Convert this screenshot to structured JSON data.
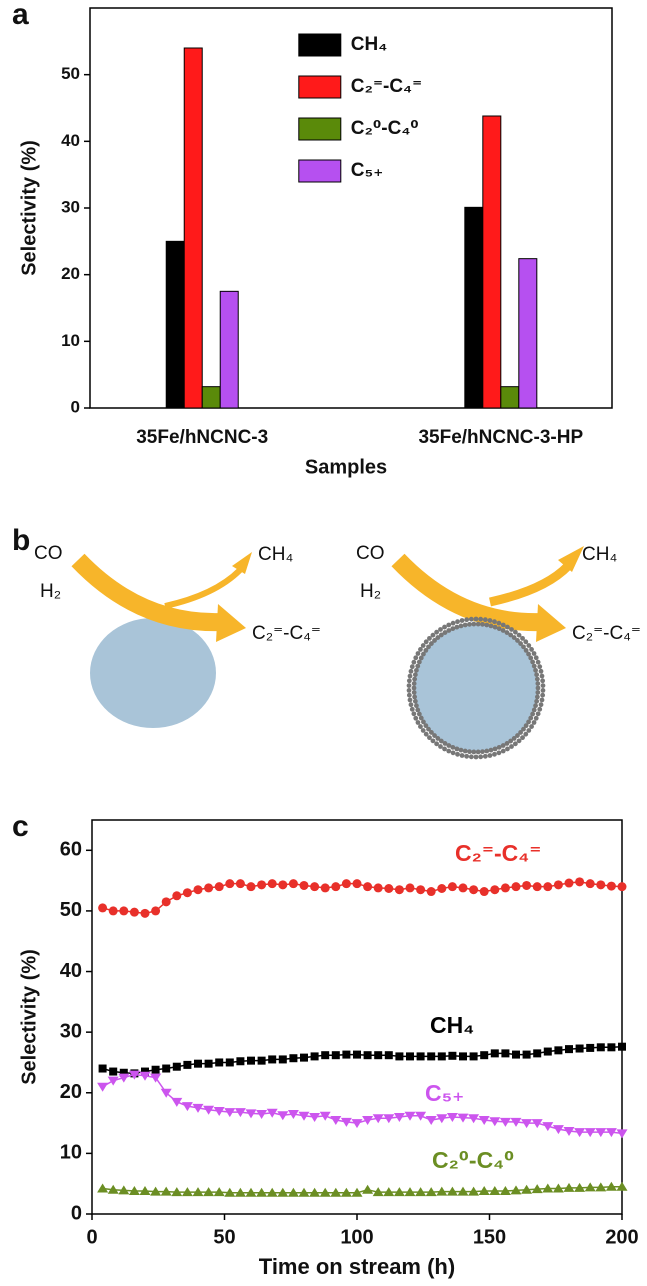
{
  "chart_data": [
    {
      "type": "bar",
      "label": "a",
      "ylabel": "Selectivity (%)",
      "xlabel": "Samples",
      "categories": [
        "35Fe/hNCNC-3",
        "35Fe/hNCNC-3-HP"
      ],
      "series": [
        {
          "name": "CH₄",
          "color": "#000000",
          "values": [
            25,
            30.1
          ]
        },
        {
          "name": "C₂⁼-C₄⁼",
          "color": "#ff1a1a",
          "values": [
            54,
            43.8
          ]
        },
        {
          "name": "C₂⁰-C₄⁰",
          "color": "#5a8a0a",
          "values": [
            3.2,
            3.2
          ]
        },
        {
          "name": "C₅₊",
          "color": "#b650f0",
          "values": [
            17.5,
            22.4
          ]
        }
      ],
      "ylim": [
        0,
        60
      ],
      "yticks": [
        0,
        10,
        20,
        30,
        40,
        50
      ],
      "legend": "upper-center"
    },
    {
      "type": "line",
      "label": "c",
      "ylabel": "Selectivity (%)",
      "xlabel": "Time on stream (h)",
      "x": [
        4,
        8,
        12,
        16,
        20,
        24,
        28,
        32,
        36,
        40,
        44,
        48,
        52,
        56,
        60,
        64,
        68,
        72,
        76,
        80,
        84,
        88,
        92,
        96,
        100,
        104,
        108,
        112,
        116,
        120,
        124,
        128,
        132,
        136,
        140,
        144,
        148,
        152,
        156,
        160,
        164,
        168,
        172,
        176,
        180,
        184,
        188,
        192,
        196,
        200
      ],
      "series": [
        {
          "name": "C₂⁼-C₄⁼",
          "color": "#e8302a",
          "marker": "circle",
          "values": [
            50.5,
            50,
            50,
            49.8,
            49.6,
            50,
            51.5,
            52.5,
            53,
            53.5,
            53.8,
            54,
            54.5,
            54.5,
            54,
            54.3,
            54.5,
            54.3,
            54.5,
            54.2,
            54,
            53.8,
            54,
            54.5,
            54.5,
            54,
            53.8,
            53.7,
            53.5,
            53.8,
            53.5,
            53.2,
            53.7,
            54,
            53.8,
            53.5,
            53.2,
            53.5,
            53.8,
            54,
            54.2,
            54,
            54,
            54.3,
            54.6,
            54.8,
            54.5,
            54.3,
            54.1,
            54
          ]
        },
        {
          "name": "CH₄",
          "color": "#000000",
          "marker": "square",
          "values": [
            24,
            23.5,
            23.3,
            23.2,
            23.5,
            23.8,
            24,
            24.3,
            24.6,
            24.8,
            24.8,
            25,
            25,
            25.2,
            25.3,
            25.3,
            25.5,
            25.5,
            25.7,
            25.8,
            26,
            26.2,
            26.2,
            26.3,
            26.3,
            26.2,
            26.2,
            26.2,
            26,
            26,
            26,
            26,
            26,
            26.1,
            26,
            26,
            26.2,
            26.5,
            26.5,
            26.3,
            26.3,
            26.5,
            26.8,
            27,
            27.2,
            27.3,
            27.4,
            27.5,
            27.5,
            27.6
          ]
        },
        {
          "name": "C₅₊",
          "color": "#cc55ee",
          "marker": "triangle-down",
          "values": [
            21,
            22,
            22.5,
            23,
            22.8,
            22.5,
            20,
            18.5,
            17.8,
            17.5,
            17.2,
            17,
            16.8,
            16.8,
            16.6,
            16.5,
            16.7,
            16.3,
            16.5,
            16.2,
            16,
            16.2,
            15.5,
            15.2,
            15,
            15.5,
            15.8,
            15.8,
            16,
            16.2,
            16.2,
            15.5,
            15.8,
            16,
            15.9,
            15.8,
            15.5,
            15.3,
            15.2,
            15.2,
            15,
            15,
            14.5,
            14,
            13.7,
            13.5,
            13.5,
            13.5,
            13.5,
            13.3
          ]
        },
        {
          "name": "C₂⁰-C₄⁰",
          "color": "#6b8e23",
          "marker": "triangle-up",
          "values": [
            4.2,
            4,
            3.9,
            3.8,
            3.8,
            3.7,
            3.7,
            3.6,
            3.6,
            3.6,
            3.6,
            3.6,
            3.5,
            3.5,
            3.5,
            3.5,
            3.5,
            3.5,
            3.5,
            3.5,
            3.5,
            3.5,
            3.5,
            3.5,
            3.5,
            4,
            3.6,
            3.6,
            3.6,
            3.6,
            3.6,
            3.6,
            3.7,
            3.7,
            3.7,
            3.7,
            3.8,
            3.8,
            3.8,
            3.9,
            4,
            4.1,
            4.2,
            4.2,
            4.3,
            4.3,
            4.4,
            4.4,
            4.5,
            4.5
          ]
        }
      ],
      "xlim": [
        0,
        200
      ],
      "xticks": [
        0,
        50,
        100,
        150,
        200
      ],
      "ylim": [
        0,
        65
      ],
      "yticks": [
        0,
        10,
        20,
        30,
        40,
        50,
        60
      ]
    }
  ],
  "diagram": {
    "label": "b",
    "left": {
      "reactants": [
        "CO",
        "H₂"
      ],
      "products": [
        "CH₄",
        "C₂⁼-C₄⁼"
      ]
    },
    "right": {
      "reactants": [
        "CO",
        "H₂"
      ],
      "products": [
        "CH₄",
        "C₂⁼-C₄⁼"
      ]
    }
  }
}
